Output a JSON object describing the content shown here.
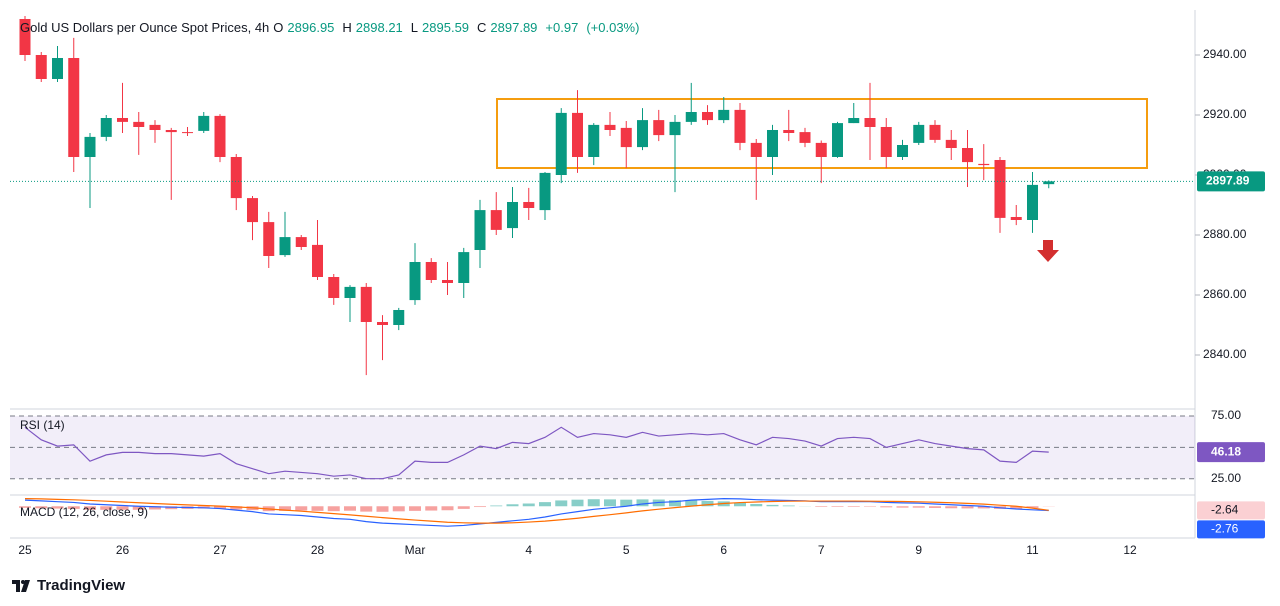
{
  "chart_data": {
    "type": "candlestick",
    "title": "Gold US Dollars per Ounce Spot Prices, 4h",
    "ohlc_labels": [
      "O",
      "H",
      "L",
      "C"
    ],
    "change": {
      "value": 0.97,
      "label": "+0.97"
    },
    "change_pct": {
      "value": 0.03,
      "label": "(+0.03%)"
    },
    "up_color": "#089981",
    "down_color": "#f23645",
    "ylim": [
      2822.33,
      2955
    ],
    "yticks": [
      {
        "value": 2840,
        "label": "2840.00"
      },
      {
        "value": 2860,
        "label": "2860.00"
      },
      {
        "value": 2880,
        "label": "2880.00"
      },
      {
        "value": 2900,
        "label": "2900.00"
      },
      {
        "value": 2920,
        "label": "2920.00"
      },
      {
        "value": 2940,
        "label": "2940.00"
      }
    ],
    "categories": [
      "25",
      null,
      null,
      null,
      null,
      null,
      "26",
      null,
      null,
      null,
      null,
      null,
      "27",
      null,
      null,
      null,
      null,
      null,
      "28",
      null,
      null,
      null,
      null,
      null,
      "Mar",
      null,
      null,
      null,
      null,
      null,
      null,
      "4",
      null,
      null,
      null,
      null,
      null,
      "5",
      null,
      null,
      null,
      null,
      null,
      "6",
      null,
      null,
      null,
      null,
      null,
      "7",
      null,
      null,
      null,
      null,
      null,
      "9",
      null,
      null,
      null,
      null,
      null,
      null,
      "11",
      null,
      null,
      null,
      null,
      null,
      "12",
      null,
      null,
      null
    ],
    "open": [
      2952,
      2940,
      2932,
      2939,
      2906,
      2912.7,
      2919,
      2917.7,
      2916.7,
      2915,
      2914.3,
      2914.7,
      2919.7,
      2906,
      2892.3,
      2884.3,
      2873.3,
      2879.3,
      2876.7,
      2866,
      2859,
      2862.7,
      2851,
      2850,
      2858.3,
      2871,
      2865,
      2864,
      2875,
      2888.3,
      2882.3,
      2891,
      2888.3,
      2900,
      2920.7,
      2906,
      2916.7,
      2915.7,
      2909.3,
      2918.3,
      2913.3,
      2917.7,
      2921,
      2918.3,
      2921.7,
      2910.7,
      2906,
      2915,
      2914.3,
      2910.7,
      2906,
      2917.3,
      2919,
      2916,
      2906,
      2910.7,
      2916.7,
      2911.7,
      2909,
      2903.7,
      2905,
      2886,
      2885,
      2896.95,
      null,
      null,
      null,
      null,
      null,
      null,
      null,
      null
    ],
    "high": [
      2953,
      2941,
      2943,
      2945.7,
      2914,
      2920,
      2930.7,
      2921,
      2918.3,
      2915.7,
      2916,
      2921,
      2920.3,
      2907,
      2893,
      2887.7,
      2887.7,
      2880,
      2885,
      2867,
      2863.3,
      2864,
      2853.3,
      2855.7,
      2877.3,
      2872.3,
      2871,
      2875.7,
      2891.7,
      2894.3,
      2896,
      2895.7,
      2901,
      2922.3,
      2928.3,
      2917.3,
      2921,
      2918,
      2922.3,
      2921.7,
      2920,
      2930.7,
      2923.3,
      2926,
      2924,
      2912,
      2916.7,
      2921.7,
      2915.7,
      2911.5,
      2917.7,
      2924,
      2930.7,
      2919,
      2911.7,
      2917.7,
      2918.3,
      2915,
      2915,
      2910.3,
      2906,
      2890,
      2901,
      2898.21,
      null,
      null,
      null,
      null,
      null,
      null,
      null,
      null
    ],
    "low": [
      2938,
      2931,
      2931,
      2901,
      2889,
      2911.3,
      2914,
      2906.7,
      2910.7,
      2891.7,
      2913,
      2914,
      2904.3,
      2888.3,
      2878.3,
      2869,
      2872.7,
      2875,
      2865,
      2856.7,
      2851,
      2833.3,
      2838.3,
      2848.3,
      2856.7,
      2864,
      2860,
      2859,
      2869,
      2880,
      2879,
      2885,
      2885,
      2897.3,
      2900.7,
      2903.3,
      2913,
      2902.3,
      2908.3,
      2911.3,
      2894.3,
      2916.7,
      2916.7,
      2917.3,
      2908.3,
      2891.7,
      2900,
      2911.3,
      2909.3,
      2897.3,
      2905.7,
      2917.3,
      2905,
      2902.3,
      2905,
      2910,
      2910.7,
      2905,
      2896,
      2898.3,
      2880.7,
      2883.3,
      2880.7,
      2895.59,
      null,
      null,
      null,
      null,
      null,
      null,
      null,
      null
    ],
    "close": [
      2940,
      2932,
      2939,
      2906,
      2912.7,
      2919,
      2917.7,
      2916,
      2915,
      2914.3,
      2914,
      2919.7,
      2906,
      2892.3,
      2884.3,
      2873,
      2879.3,
      2876,
      2866,
      2859,
      2862.7,
      2851,
      2850,
      2855,
      2871,
      2865,
      2864,
      2874.3,
      2888.3,
      2881.7,
      2891,
      2889,
      2900.7,
      2920.7,
      2906,
      2916.7,
      2915,
      2909.3,
      2918.3,
      2913.3,
      2917.7,
      2921,
      2918.3,
      2921.7,
      2910.7,
      2906,
      2915,
      2914,
      2910.7,
      2906,
      2917.3,
      2919,
      2916,
      2906,
      2910,
      2916.7,
      2911.7,
      2909,
      2904.3,
      2903.3,
      2885.7,
      2885,
      2896.7,
      2897.89,
      null,
      null,
      null,
      null,
      null,
      null,
      null,
      null
    ],
    "rsi": {
      "name": "RSI (14)",
      "color": "#7e57c2",
      "ylim": [
        12,
        79
      ],
      "yticks": [
        {
          "value": 75,
          "label": "75.00"
        },
        {
          "value": 25,
          "label": "25.00"
        }
      ],
      "values": [
        66,
        56,
        51,
        52,
        39,
        44,
        46,
        46,
        45,
        45,
        44,
        43,
        45,
        37,
        33,
        29,
        31,
        30,
        29,
        27,
        28,
        25,
        25,
        28,
        39,
        38,
        38,
        44,
        51,
        49,
        54,
        53,
        58,
        66,
        58,
        61,
        60,
        58,
        62,
        59,
        60,
        61,
        60,
        61,
        56,
        52,
        58,
        57,
        55,
        51,
        57,
        58,
        57,
        50,
        53,
        56,
        53,
        51,
        49,
        48,
        39,
        38,
        47,
        46.18,
        null,
        null,
        null,
        null,
        null,
        null,
        null,
        null
      ]
    },
    "macd": {
      "name": "MACD (12, 26, close, 9)",
      "ylim": [
        -22,
        8
      ],
      "macd_line": {
        "color": "#2962ff",
        "values": [
          4,
          3.5,
          3,
          2.5,
          1.5,
          1,
          0.5,
          0,
          -0.3,
          -0.6,
          -0.8,
          -1,
          -1.5,
          -2.5,
          -3.5,
          -5,
          -5.5,
          -6,
          -7,
          -8,
          -8.5,
          -10,
          -11,
          -11.5,
          -12,
          -12.5,
          -13,
          -12.5,
          -11.5,
          -10.5,
          -9.5,
          -8.5,
          -7,
          -5,
          -3.5,
          -2,
          -1,
          0,
          1.5,
          2.5,
          3,
          4,
          4.5,
          5,
          4.8,
          4.3,
          4,
          3.8,
          3.5,
          3,
          3,
          3,
          3,
          2.5,
          2.2,
          2,
          1.5,
          1,
          0.5,
          0,
          -1,
          -1.8,
          -2.3,
          -2.76,
          null,
          null,
          null,
          null,
          null,
          null,
          null,
          null
        ]
      },
      "signal_line": {
        "color": "#ff6d00",
        "values": [
          5,
          4.8,
          4.5,
          4.2,
          3.8,
          3.3,
          2.8,
          2.3,
          1.8,
          1.3,
          0.9,
          0.5,
          0.1,
          -0.4,
          -1,
          -1.8,
          -2.5,
          -3.2,
          -4,
          -4.8,
          -5.6,
          -6.5,
          -7.4,
          -8.2,
          -9,
          -9.7,
          -10.4,
          -10.8,
          -11,
          -11,
          -10.8,
          -10.3,
          -9.7,
          -8.8,
          -7.8,
          -6.6,
          -5.5,
          -4.3,
          -3,
          -1.9,
          -0.9,
          0.1,
          1,
          1.8,
          2.4,
          2.8,
          3.1,
          3.3,
          3.4,
          3.4,
          3.4,
          3.4,
          3.3,
          3.2,
          3.1,
          2.9,
          2.6,
          2.3,
          1.9,
          1.4,
          0.7,
          0,
          -1.2,
          -2.64,
          null,
          null,
          null,
          null,
          null,
          null,
          null,
          null
        ]
      },
      "histogram": {
        "up_color": "#26a69a",
        "down_color": "#ef5350",
        "values": [
          -1,
          -1.3,
          -1.5,
          -1.7,
          -2.3,
          -2.3,
          -2.3,
          -2.3,
          -2.1,
          -1.9,
          -1.7,
          -1.5,
          -1.6,
          -2.1,
          -2.5,
          -3.2,
          -3,
          -2.8,
          -3,
          -3.2,
          -2.9,
          -3.5,
          -3.6,
          -3.3,
          -3,
          -2.8,
          -2.6,
          -1.7,
          -0.5,
          0.5,
          1.3,
          1.8,
          2.7,
          3.8,
          4.3,
          4.6,
          4.5,
          4.3,
          4.5,
          4.4,
          3.9,
          3.9,
          3.5,
          3.2,
          2.4,
          1.5,
          0.9,
          0.5,
          0.1,
          -0.4,
          -0.4,
          -0.4,
          -0.3,
          -0.7,
          -0.9,
          -0.9,
          -1.1,
          -1.3,
          -1.4,
          -1.4,
          -1.7,
          -1.8,
          -1.1,
          -0.12,
          null,
          null,
          null,
          null,
          null,
          null,
          null,
          null
        ]
      }
    }
  },
  "branding": "TradingView"
}
